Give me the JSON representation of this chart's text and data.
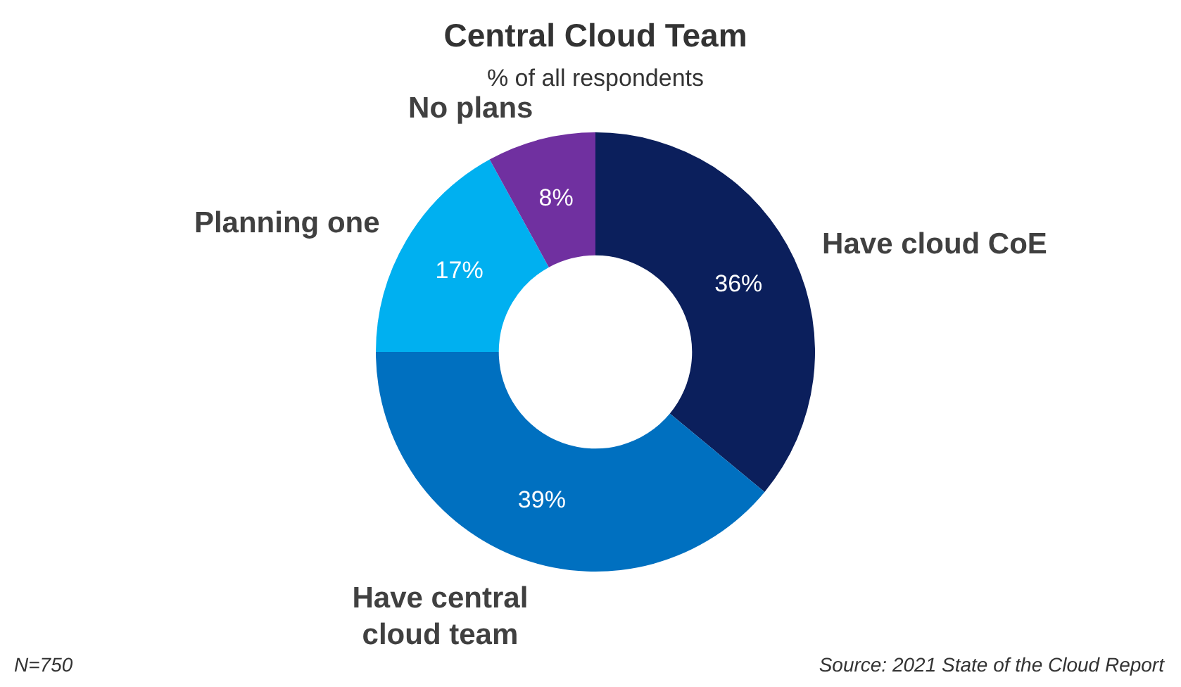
{
  "chart_data": {
    "type": "donut",
    "title": "Central Cloud Team",
    "subtitle": "% of all respondents",
    "categories": [
      "Have cloud CoE",
      "Have central cloud team",
      "Planning one",
      "No plans"
    ],
    "values": [
      36,
      39,
      17,
      8
    ],
    "colors": [
      "#0b1f5c",
      "#0070c0",
      "#00b0f0",
      "#7030a0"
    ],
    "value_labels": [
      "36%",
      "39%",
      "17%",
      "8%"
    ],
    "legend": false,
    "annotations": [
      "N=750",
      "Source: 2021 State of the Cloud Report"
    ]
  }
}
